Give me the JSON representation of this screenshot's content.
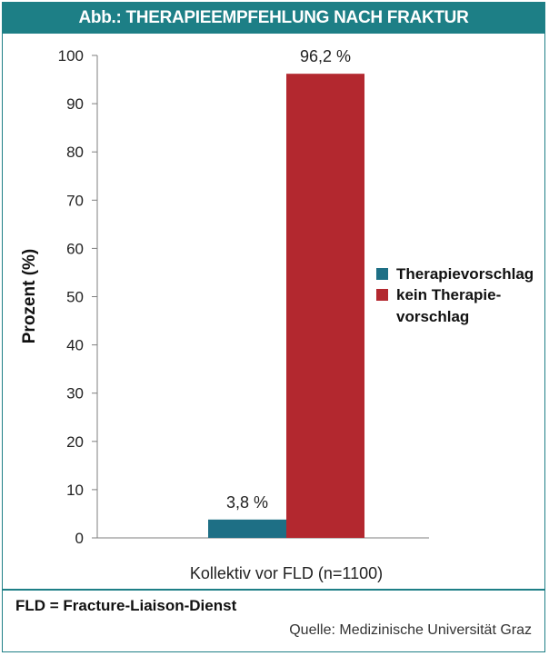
{
  "header": {
    "title": "Abb.: THERAPIEEMPFEHLUNG NACH FRAKTUR"
  },
  "footer": {
    "note": "FLD = Fracture-Liaison-Dienst",
    "source": "Quelle: Medizinische Universität Graz"
  },
  "colors": {
    "accent": "#1d7f86",
    "series1": "#1e6f85",
    "series2": "#b3282f"
  },
  "chart_data": {
    "type": "bar",
    "categories": [
      "Kollektiv vor FLD (n=1100)"
    ],
    "series": [
      {
        "name": "Therapievorschlag",
        "values": [
          3.8
        ],
        "label": "3,8 %",
        "color": "#1e6f85"
      },
      {
        "name": "kein Therapievorschlag",
        "legend_lines": [
          "kein Therapie-",
          "vorschlag"
        ],
        "values": [
          96.2
        ],
        "label": "96,2 %",
        "color": "#b3282f"
      }
    ],
    "xlabel": "Kollektiv vor FLD (n=1100)",
    "ylabel": "Prozent (%)",
    "ylim": [
      0,
      100
    ],
    "yticks": [
      0,
      10,
      20,
      30,
      40,
      50,
      60,
      70,
      80,
      90,
      100
    ],
    "grid": false,
    "legend_position": "right"
  }
}
